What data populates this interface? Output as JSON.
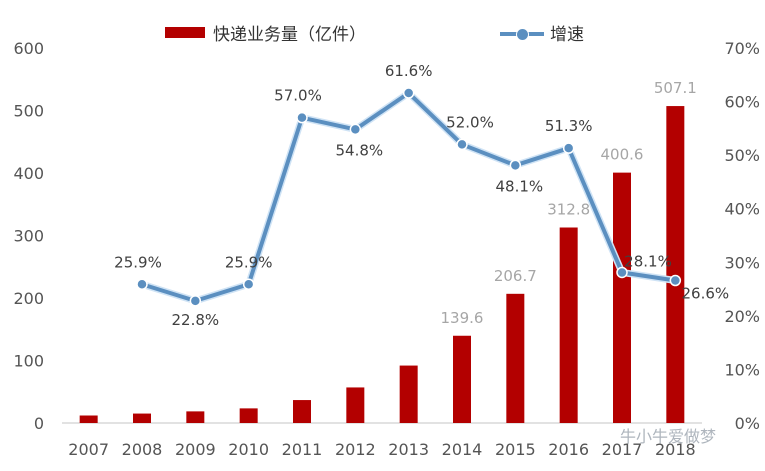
{
  "legend": {
    "bar_label": "快递业务量（亿件）",
    "line_label": "增速"
  },
  "colors": {
    "bar": "#b30000",
    "line": "#5b8fc0",
    "axis_text": "#555555",
    "bar_label_text": "#a6a6a6",
    "line_label_text": "#404040",
    "axis_line": "#d9d9d9"
  },
  "watermark": "牛小牛爱做梦",
  "chart_data": {
    "type": "bar",
    "title": "",
    "xlabel": "",
    "ylabel": "",
    "categories": [
      "2007",
      "2008",
      "2009",
      "2010",
      "2011",
      "2012",
      "2013",
      "2014",
      "2015",
      "2016",
      "2017",
      "2018"
    ],
    "series": [
      {
        "name": "快递业务量（亿件）",
        "type": "bar",
        "axis": "left",
        "values": [
          12.0,
          15.1,
          18.6,
          23.4,
          36.7,
          56.9,
          91.9,
          139.6,
          206.7,
          312.8,
          400.6,
          507.1
        ],
        "labels": [
          "",
          "",
          "",
          "",
          "",
          "",
          "",
          "139.6",
          "206.7",
          "312.8",
          "400.6",
          "507.1"
        ]
      },
      {
        "name": "增速",
        "type": "line",
        "axis": "right",
        "values": [
          null,
          25.9,
          22.8,
          25.9,
          57.0,
          54.8,
          61.6,
          52.0,
          48.1,
          51.3,
          28.1,
          26.6
        ],
        "labels": [
          "",
          "25.9%",
          "22.8%",
          "25.9%",
          "57.0%",
          "54.8%",
          "61.6%",
          "52.0%",
          "48.1%",
          "51.3%",
          "28.1%",
          "26.6%"
        ]
      }
    ],
    "left_axis": {
      "ylim": [
        0,
        600
      ],
      "ticks": [
        "0",
        "100",
        "200",
        "300",
        "400",
        "500",
        "600"
      ]
    },
    "right_axis": {
      "ylim": [
        0,
        70
      ],
      "ticks": [
        "0%",
        "10%",
        "20%",
        "30%",
        "40%",
        "50%",
        "60%",
        "70%"
      ]
    },
    "grid": false,
    "legend_position": "top"
  }
}
